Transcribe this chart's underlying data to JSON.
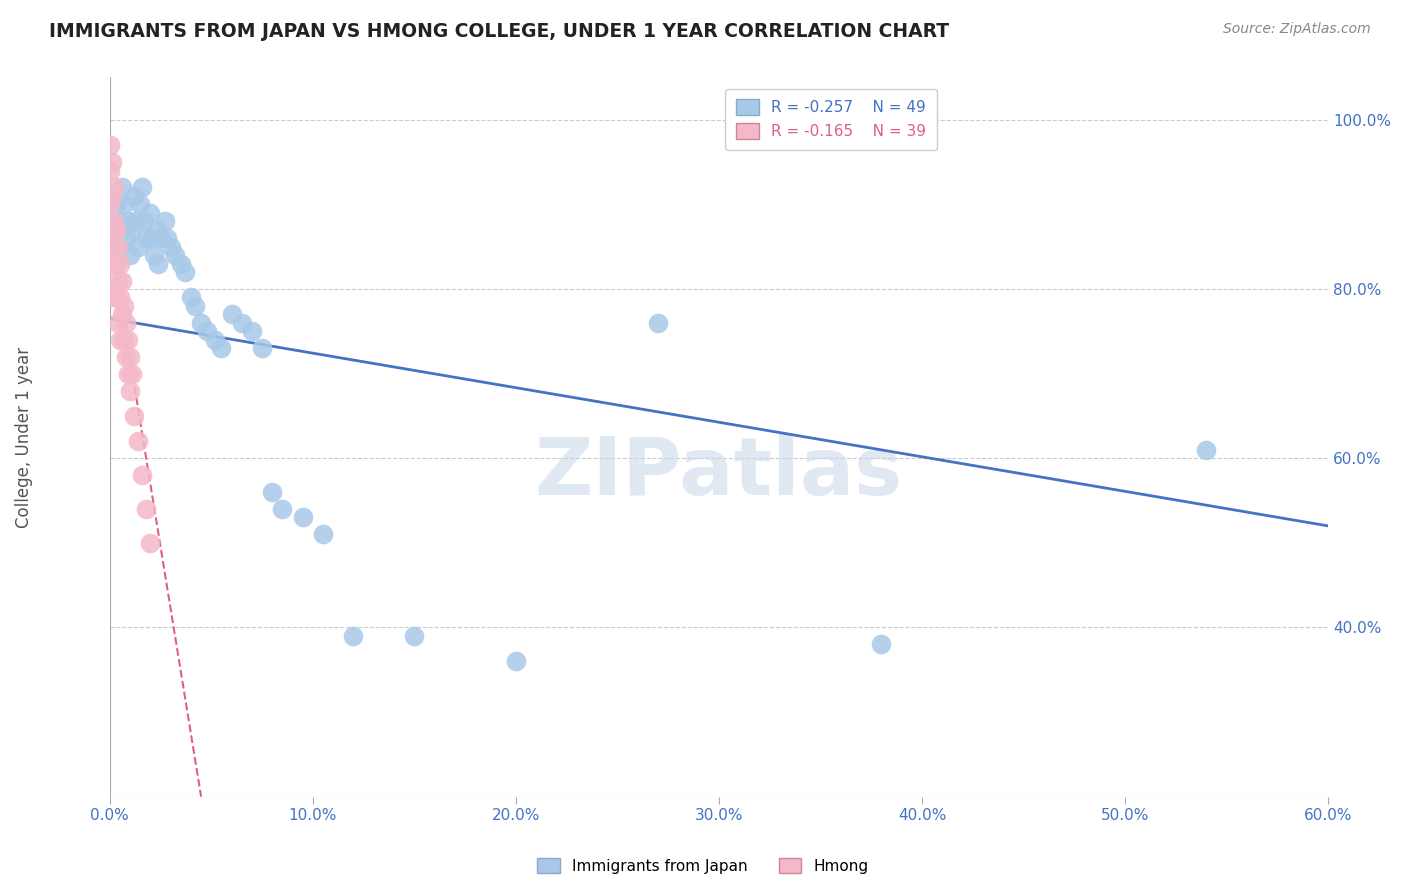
{
  "title": "IMMIGRANTS FROM JAPAN VS HMONG COLLEGE, UNDER 1 YEAR CORRELATION CHART",
  "source": "Source: ZipAtlas.com",
  "ylabel_text": "College, Under 1 year",
  "xlim": [
    0.0,
    0.6
  ],
  "ylim": [
    0.2,
    1.05
  ],
  "xtick_vals": [
    0.0,
    0.1,
    0.2,
    0.3,
    0.4,
    0.5,
    0.6
  ],
  "xtick_labels": [
    "0.0%",
    "10.0%",
    "20.0%",
    "30.0%",
    "40.0%",
    "50.0%",
    "60.0%"
  ],
  "ytick_vals": [
    0.4,
    0.6,
    0.8,
    1.0
  ],
  "ytick_labels": [
    "40.0%",
    "60.0%",
    "80.0%",
    "100.0%"
  ],
  "japan_r": -0.257,
  "japan_n": 49,
  "hmong_r": -0.165,
  "hmong_n": 39,
  "japan_color": "#a8c8e8",
  "hmong_color": "#f4b8c8",
  "japan_line_color": "#4472c4",
  "hmong_line_color": "#e06080",
  "legend_japan_label": "Immigrants from Japan",
  "legend_hmong_label": "Hmong",
  "watermark": "ZIPatlas",
  "japan_line_x0": 0.0,
  "japan_line_y0": 0.765,
  "japan_line_x1": 0.6,
  "japan_line_y1": 0.52,
  "hmong_line_x0": 0.0,
  "hmong_line_y0": 0.865,
  "hmong_line_x1": 0.045,
  "hmong_line_y1": 0.2,
  "japan_x": [
    0.002,
    0.003,
    0.004,
    0.005,
    0.006,
    0.007,
    0.008,
    0.009,
    0.01,
    0.011,
    0.012,
    0.013,
    0.014,
    0.015,
    0.016,
    0.017,
    0.018,
    0.02,
    0.021,
    0.022,
    0.023,
    0.024,
    0.025,
    0.027,
    0.028,
    0.03,
    0.032,
    0.035,
    0.037,
    0.04,
    0.042,
    0.045,
    0.048,
    0.052,
    0.055,
    0.06,
    0.065,
    0.07,
    0.075,
    0.08,
    0.085,
    0.095,
    0.105,
    0.12,
    0.15,
    0.2,
    0.27,
    0.38,
    0.54
  ],
  "japan_y": [
    0.87,
    0.9,
    0.88,
    0.85,
    0.92,
    0.9,
    0.86,
    0.88,
    0.84,
    0.87,
    0.91,
    0.88,
    0.85,
    0.9,
    0.92,
    0.88,
    0.86,
    0.89,
    0.86,
    0.84,
    0.87,
    0.83,
    0.86,
    0.88,
    0.86,
    0.85,
    0.84,
    0.83,
    0.82,
    0.79,
    0.78,
    0.76,
    0.75,
    0.74,
    0.73,
    0.77,
    0.76,
    0.75,
    0.73,
    0.56,
    0.54,
    0.53,
    0.51,
    0.39,
    0.39,
    0.36,
    0.76,
    0.38,
    0.61
  ],
  "hmong_x": [
    0.0,
    0.0,
    0.0,
    0.0,
    0.0,
    0.0,
    0.001,
    0.001,
    0.001,
    0.001,
    0.002,
    0.002,
    0.002,
    0.002,
    0.003,
    0.003,
    0.003,
    0.004,
    0.004,
    0.004,
    0.005,
    0.005,
    0.005,
    0.006,
    0.006,
    0.007,
    0.007,
    0.008,
    0.008,
    0.009,
    0.009,
    0.01,
    0.01,
    0.011,
    0.012,
    0.014,
    0.016,
    0.018,
    0.02
  ],
  "hmong_y": [
    0.97,
    0.94,
    0.9,
    0.86,
    0.83,
    0.79,
    0.95,
    0.91,
    0.87,
    0.84,
    0.92,
    0.88,
    0.84,
    0.8,
    0.87,
    0.83,
    0.79,
    0.85,
    0.81,
    0.76,
    0.83,
    0.79,
    0.74,
    0.81,
    0.77,
    0.78,
    0.74,
    0.76,
    0.72,
    0.74,
    0.7,
    0.72,
    0.68,
    0.7,
    0.65,
    0.62,
    0.58,
    0.54,
    0.5
  ]
}
